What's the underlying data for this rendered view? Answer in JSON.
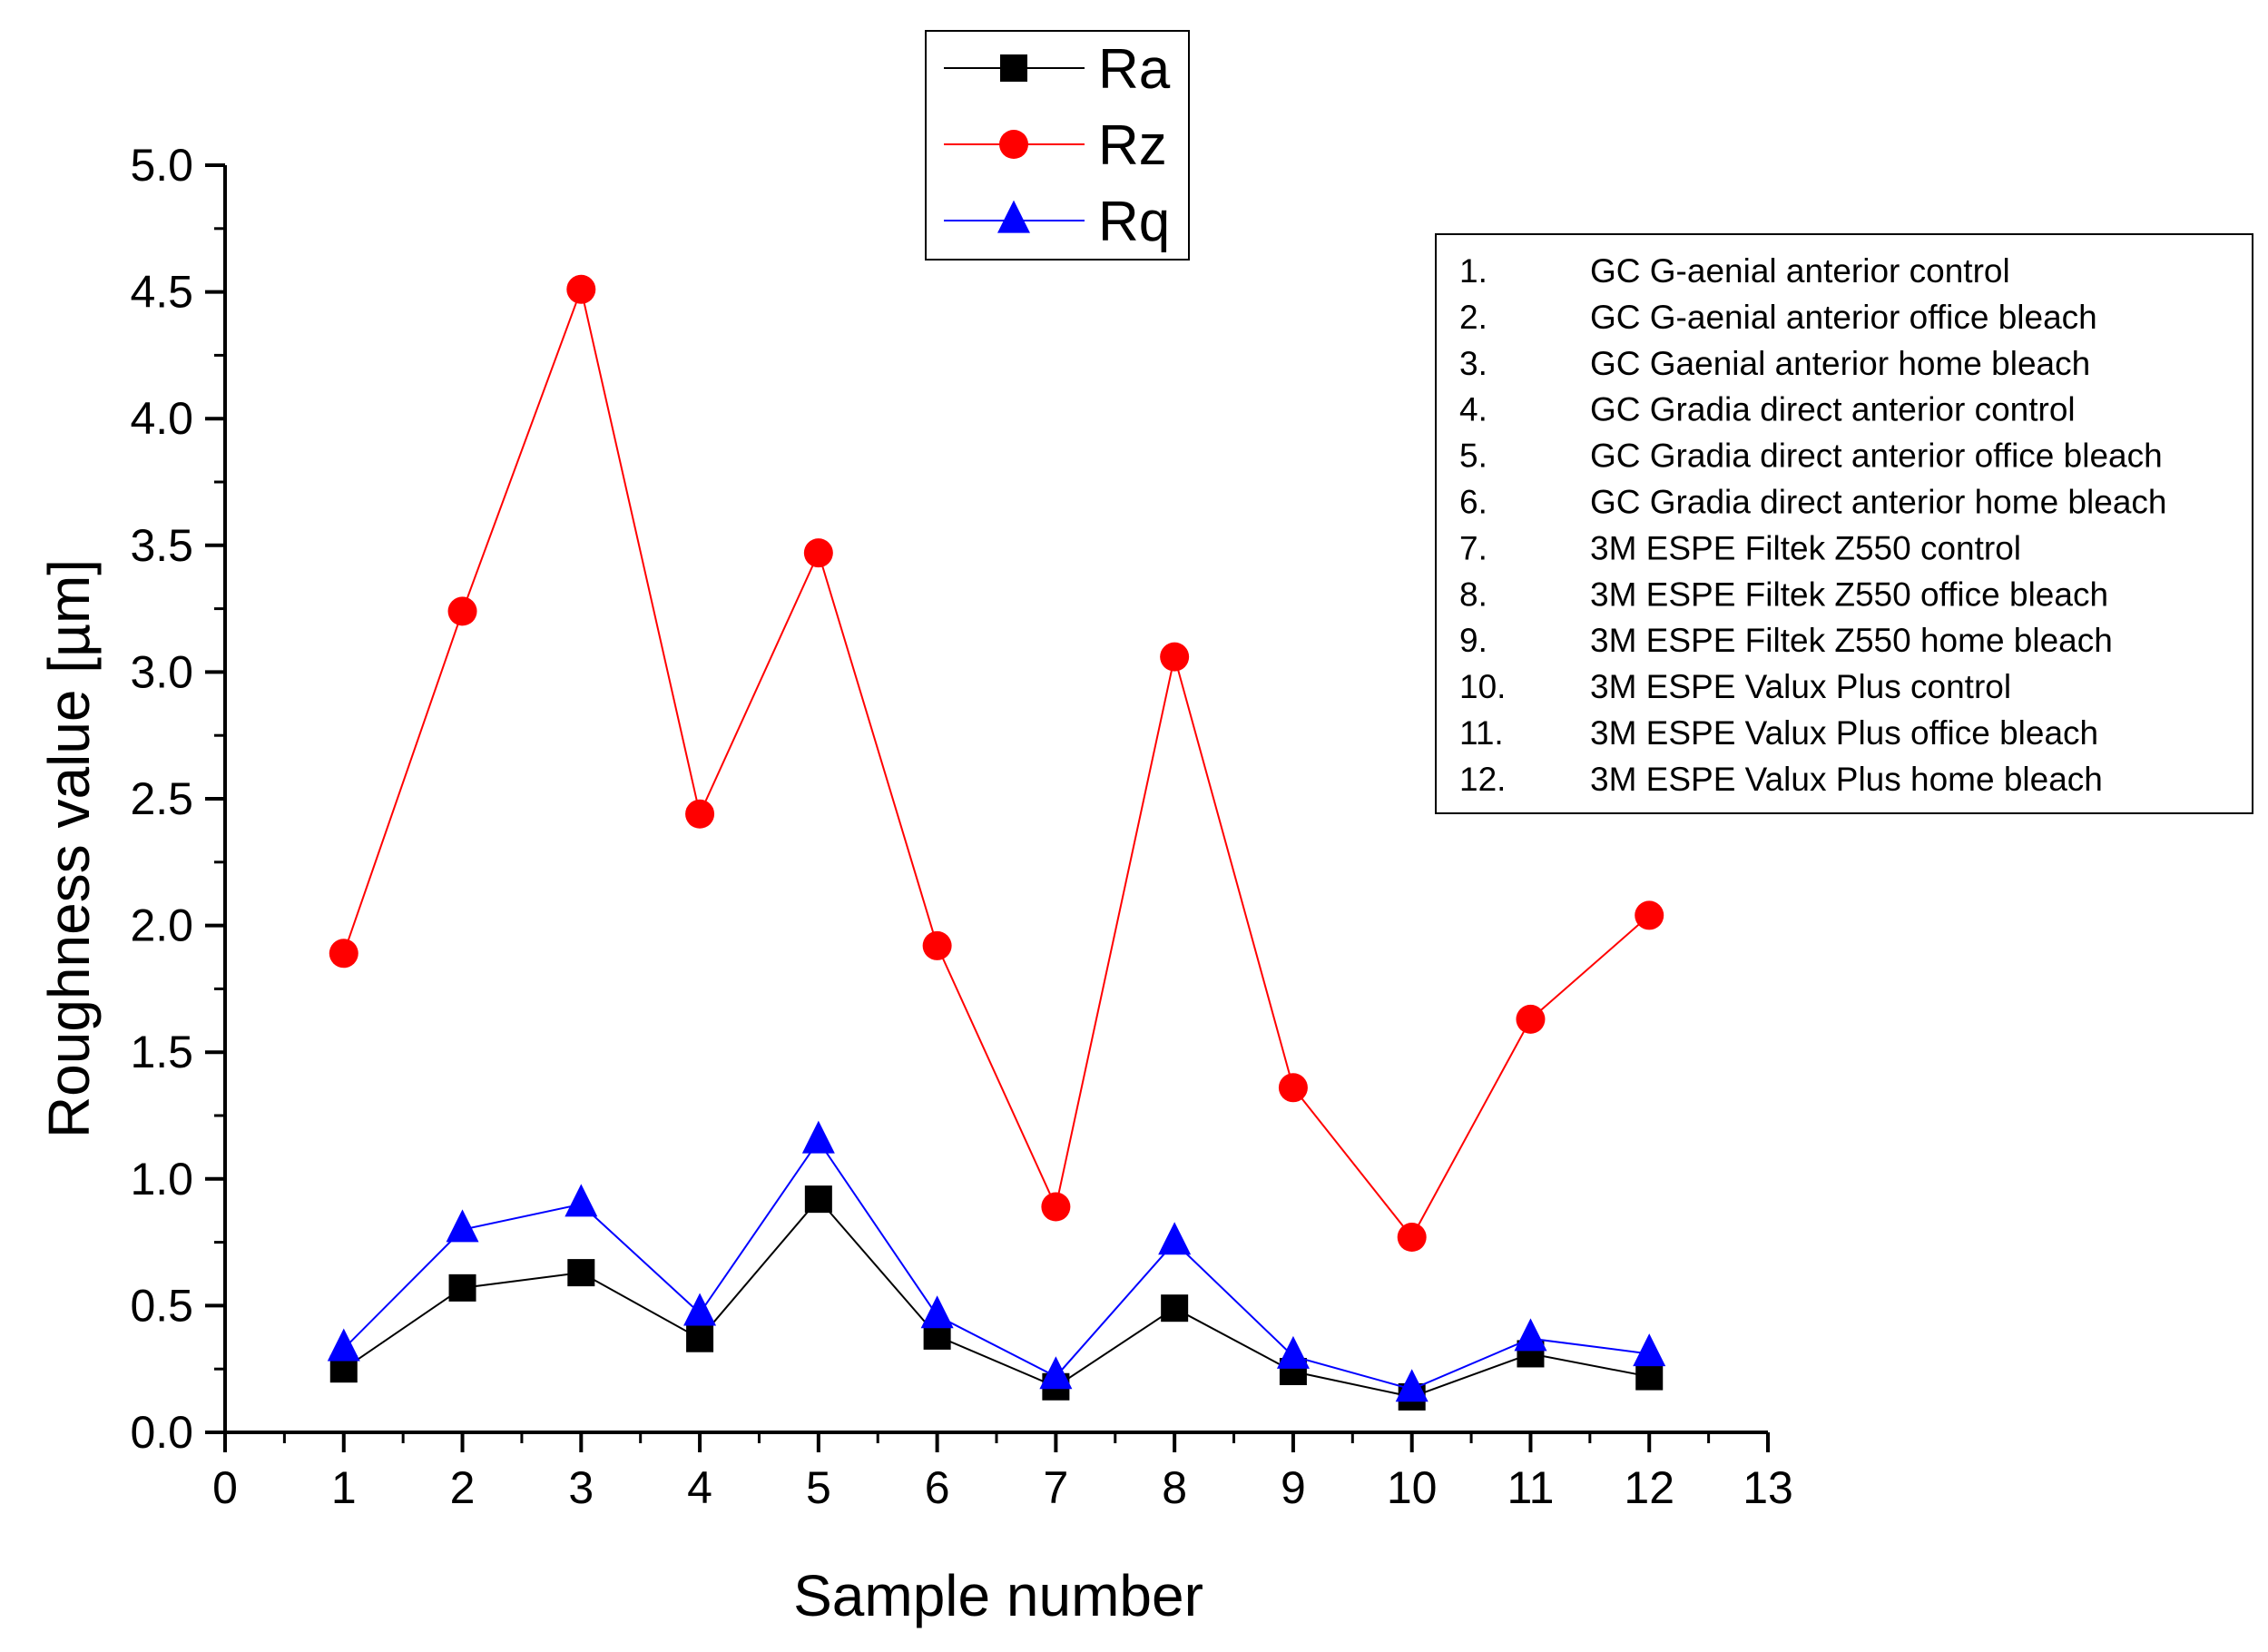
{
  "chart_data": {
    "type": "line",
    "title": "",
    "xlabel": "Sample number",
    "ylabel": "Roughness value [µm]",
    "xlim": [
      0,
      13
    ],
    "ylim": [
      0,
      5.0
    ],
    "x_ticks": [
      "0",
      "1",
      "2",
      "3",
      "4",
      "5",
      "6",
      "7",
      "8",
      "9",
      "10",
      "11",
      "12",
      "13"
    ],
    "y_ticks": [
      "0.0",
      "0.5",
      "1.0",
      "1.5",
      "2.0",
      "2.5",
      "3.0",
      "3.5",
      "4.0",
      "4.5",
      "5.0"
    ],
    "x": [
      1,
      2,
      3,
      4,
      5,
      6,
      7,
      8,
      9,
      10,
      11,
      12
    ],
    "series": [
      {
        "name": "Ra",
        "color": "#000000",
        "marker": "square",
        "values": [
          0.25,
          0.57,
          0.63,
          0.37,
          0.92,
          0.38,
          0.18,
          0.49,
          0.24,
          0.14,
          0.31,
          0.22
        ]
      },
      {
        "name": "Rz",
        "color": "#ff0000",
        "marker": "circle",
        "values": [
          1.89,
          3.24,
          4.51,
          2.44,
          3.47,
          1.92,
          0.89,
          3.06,
          1.36,
          0.77,
          1.63,
          2.04
        ]
      },
      {
        "name": "Rq",
        "color": "#0000ff",
        "marker": "triangle",
        "values": [
          0.33,
          0.8,
          0.9,
          0.47,
          1.15,
          0.46,
          0.22,
          0.75,
          0.3,
          0.17,
          0.37,
          0.31
        ]
      }
    ],
    "legend_position": "top-center",
    "samples_legend": {
      "position": "top-right",
      "items": [
        {
          "num": "1.",
          "label": "GC G-aenial anterior control"
        },
        {
          "num": "2.",
          "label": "GC G-aenial anterior office bleach"
        },
        {
          "num": "3.",
          "label": "GC Gaenial anterior home bleach"
        },
        {
          "num": "4.",
          "label": "GC Gradia direct anterior control"
        },
        {
          "num": "5.",
          "label": "GC Gradia direct anterior office bleach"
        },
        {
          "num": "6.",
          "label": "GC Gradia direct anterior home bleach"
        },
        {
          "num": "7.",
          "label": "3M ESPE Filtek Z550 control"
        },
        {
          "num": "8.",
          "label": "3M ESPE Filtek Z550 office bleach"
        },
        {
          "num": "9.",
          "label": "3M ESPE Filtek Z550 home bleach"
        },
        {
          "num": "10.",
          "label": "3M ESPE Valux Plus control"
        },
        {
          "num": "11.",
          "label": "3M ESPE Valux Plus office bleach"
        },
        {
          "num": "12.",
          "label": "3M ESPE Valux Plus home bleach"
        }
      ]
    }
  }
}
